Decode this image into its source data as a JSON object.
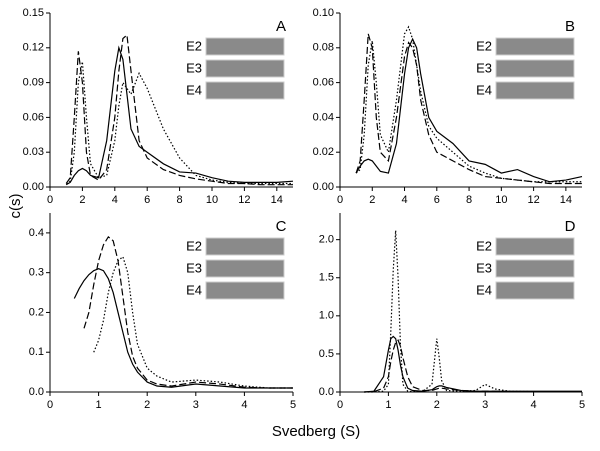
{
  "shared_labels": {
    "y": "c(s)",
    "x": "Svedberg (S)"
  },
  "chart_data": [
    {
      "type": "line",
      "panel_label": "A",
      "inset_labels": [
        "E2",
        "E3",
        "E4"
      ],
      "x": [
        1,
        1.25,
        1.5,
        1.75,
        2,
        2.25,
        2.5,
        3,
        3.5,
        4,
        4.25,
        4.5,
        4.75,
        5,
        5.5,
        6,
        7,
        8,
        9,
        10,
        11,
        12,
        13,
        14,
        15
      ],
      "xlim": [
        0,
        15
      ],
      "xticks": [
        0,
        2,
        4,
        6,
        8,
        10,
        12,
        14
      ],
      "ylim": [
        0,
        0.15
      ],
      "yticks": [
        {
          "value": 0,
          "label": "0.00"
        },
        {
          "value": 0.03,
          "label": "0.03"
        },
        {
          "value": 0.06,
          "label": "0.06"
        },
        {
          "value": 0.09,
          "label": "0.09"
        },
        {
          "value": 0.12,
          "label": "0.12"
        },
        {
          "value": 0.15,
          "label": "0.15"
        }
      ],
      "series": [
        {
          "color": "#000000",
          "dash": "solid",
          "values": [
            0.002,
            0.004,
            0.01,
            0.014,
            0.016,
            0.014,
            0.01,
            0.008,
            0.04,
            0.1,
            0.12,
            0.11,
            0.08,
            0.05,
            0.035,
            0.03,
            0.02,
            0.013,
            0.012,
            0.008,
            0.005,
            0.004,
            0.004,
            0.004,
            0.005
          ]
        },
        {
          "color": "#000000",
          "dash": "dashed",
          "values": [
            0.003,
            0.008,
            0.06,
            0.117,
            0.09,
            0.03,
            0.01,
            0.006,
            0.015,
            0.06,
            0.1,
            0.128,
            0.131,
            0.1,
            0.04,
            0.025,
            0.015,
            0.01,
            0.007,
            0.005,
            0.003,
            0.003,
            0.002,
            0.002,
            0.002
          ]
        },
        {
          "color": "#000000",
          "dash": "dotted",
          "values": [
            0.003,
            0.005,
            0.03,
            0.09,
            0.108,
            0.06,
            0.02,
            0.008,
            0.01,
            0.04,
            0.07,
            0.09,
            0.085,
            0.08,
            0.098,
            0.085,
            0.05,
            0.025,
            0.01,
            0.006,
            0.004,
            0.003,
            0.003,
            0.003,
            0.003
          ]
        }
      ]
    },
    {
      "type": "line",
      "panel_label": "B",
      "inset_labels": [
        "E2",
        "E3",
        "E4"
      ],
      "x": [
        1,
        1.25,
        1.5,
        1.75,
        2,
        2.25,
        2.5,
        3,
        3.5,
        4,
        4.25,
        4.5,
        4.75,
        5,
        5.5,
        6,
        7,
        8,
        9,
        10,
        11,
        12,
        13,
        14,
        15
      ],
      "xlim": [
        0,
        15
      ],
      "xticks": [
        0,
        2,
        4,
        6,
        8,
        10,
        12,
        14
      ],
      "ylim": [
        0,
        0.1
      ],
      "yticks": [
        {
          "value": 0,
          "label": "0.00"
        },
        {
          "value": 0.02,
          "label": "0.02"
        },
        {
          "value": 0.04,
          "label": "0.04"
        },
        {
          "value": 0.06,
          "label": "0.06"
        },
        {
          "value": 0.08,
          "label": "0.08"
        },
        {
          "value": 0.1,
          "label": "0.10"
        }
      ],
      "series": [
        {
          "color": "#000000",
          "dash": "solid",
          "values": [
            0.008,
            0.012,
            0.015,
            0.016,
            0.015,
            0.012,
            0.009,
            0.008,
            0.025,
            0.065,
            0.08,
            0.085,
            0.08,
            0.065,
            0.04,
            0.032,
            0.025,
            0.015,
            0.013,
            0.008,
            0.01,
            0.006,
            0.003,
            0.004,
            0.006
          ]
        },
        {
          "color": "#000000",
          "dash": "dashed",
          "values": [
            0.008,
            0.015,
            0.05,
            0.088,
            0.08,
            0.04,
            0.02,
            0.015,
            0.04,
            0.075,
            0.083,
            0.08,
            0.07,
            0.05,
            0.03,
            0.02,
            0.015,
            0.01,
            0.006,
            0.005,
            0.004,
            0.003,
            0.002,
            0.002,
            0.002
          ]
        },
        {
          "color": "#000000",
          "dash": "dotted",
          "values": [
            0.008,
            0.01,
            0.03,
            0.07,
            0.084,
            0.06,
            0.03,
            0.02,
            0.05,
            0.088,
            0.092,
            0.085,
            0.07,
            0.055,
            0.035,
            0.028,
            0.02,
            0.012,
            0.008,
            0.005,
            0.004,
            0.003,
            0.003,
            0.003,
            0.003
          ]
        }
      ]
    },
    {
      "type": "line",
      "panel_label": "C",
      "inset_labels": [
        "E2",
        "E3",
        "E4"
      ],
      "x": [
        0.5,
        0.6,
        0.7,
        0.8,
        0.9,
        1,
        1.1,
        1.2,
        1.3,
        1.4,
        1.5,
        1.6,
        1.7,
        1.8,
        2,
        2.2,
        2.5,
        3,
        3.5,
        4,
        4.5,
        5
      ],
      "xlim": [
        0,
        5
      ],
      "xticks": [
        0,
        1,
        2,
        3,
        4,
        5
      ],
      "ylim": [
        0,
        0.45
      ],
      "yticks": [
        {
          "value": 0,
          "label": "0.0"
        },
        {
          "value": 0.1,
          "label": "0.1"
        },
        {
          "value": 0.2,
          "label": "0.2"
        },
        {
          "value": 0.3,
          "label": "0.3"
        },
        {
          "value": 0.4,
          "label": "0.4"
        }
      ],
      "series": [
        {
          "color": "#000000",
          "dash": "solid",
          "values": [
            0.235,
            0.26,
            0.28,
            0.295,
            0.305,
            0.31,
            0.305,
            0.285,
            0.25,
            0.2,
            0.15,
            0.1,
            0.07,
            0.05,
            0.025,
            0.015,
            0.012,
            0.02,
            0.015,
            0.01,
            0.01,
            0.01
          ]
        },
        {
          "color": "#000000",
          "dash": "dashed",
          "values": [
            null,
            null,
            0.16,
            0.2,
            0.27,
            0.33,
            0.37,
            0.39,
            0.38,
            0.33,
            0.24,
            0.15,
            0.09,
            0.06,
            0.03,
            0.02,
            0.015,
            0.025,
            0.02,
            0.012,
            0.01,
            0.01
          ]
        },
        {
          "color": "#000000",
          "dash": "dotted",
          "values": [
            null,
            null,
            null,
            null,
            0.1,
            0.13,
            0.18,
            0.25,
            0.3,
            0.33,
            0.34,
            0.3,
            0.2,
            0.12,
            0.06,
            0.04,
            0.025,
            0.03,
            0.025,
            0.015,
            0.01,
            0.01
          ]
        }
      ]
    },
    {
      "type": "line",
      "panel_label": "D",
      "inset_labels": [
        "E2",
        "E3",
        "E4"
      ],
      "x": [
        0.5,
        0.7,
        0.9,
        1,
        1.05,
        1.1,
        1.15,
        1.2,
        1.25,
        1.3,
        1.4,
        1.5,
        1.7,
        1.9,
        1.95,
        2,
        2.05,
        2.1,
        2.2,
        2.5,
        2.8,
        3,
        3.2,
        3.5,
        4,
        5
      ],
      "xlim": [
        0,
        5
      ],
      "xticks": [
        0,
        1,
        2,
        3,
        4,
        5
      ],
      "ylim": [
        0,
        2.35
      ],
      "yticks": [
        {
          "value": 0,
          "label": "0.0"
        },
        {
          "value": 0.5,
          "label": "0.5"
        },
        {
          "value": 1,
          "label": "1.0"
        },
        {
          "value": 1.5,
          "label": "1.5"
        },
        {
          "value": 2,
          "label": "2.0"
        }
      ],
      "series": [
        {
          "color": "#000000",
          "dash": "solid",
          "values": [
            0,
            0.01,
            0.2,
            0.55,
            0.7,
            0.73,
            0.7,
            0.55,
            0.35,
            0.2,
            0.05,
            0.02,
            0.01,
            0.03,
            0.05,
            0.07,
            0.08,
            0.08,
            0.06,
            0.02,
            0.01,
            0.01,
            0.01,
            0.01,
            0.01,
            0.01
          ]
        },
        {
          "color": "#000000",
          "dash": "dashed",
          "values": [
            0,
            0.005,
            0.05,
            0.2,
            0.4,
            0.55,
            0.65,
            0.68,
            0.6,
            0.45,
            0.2,
            0.07,
            0.02,
            0.02,
            0.03,
            0.04,
            0.05,
            0.05,
            0.04,
            0.02,
            0.01,
            0.01,
            0.01,
            0.005,
            0.005,
            0.005
          ]
        },
        {
          "color": "#000000",
          "dash": "dotted",
          "values": [
            0,
            0,
            0.01,
            0.1,
            0.8,
            1.6,
            2.12,
            1.5,
            0.6,
            0.1,
            0.01,
            0.005,
            0.005,
            0.1,
            0.4,
            0.7,
            0.45,
            0.15,
            0.02,
            0.01,
            0.02,
            0.1,
            0.04,
            0.01,
            0.005,
            0.005
          ]
        }
      ]
    }
  ]
}
